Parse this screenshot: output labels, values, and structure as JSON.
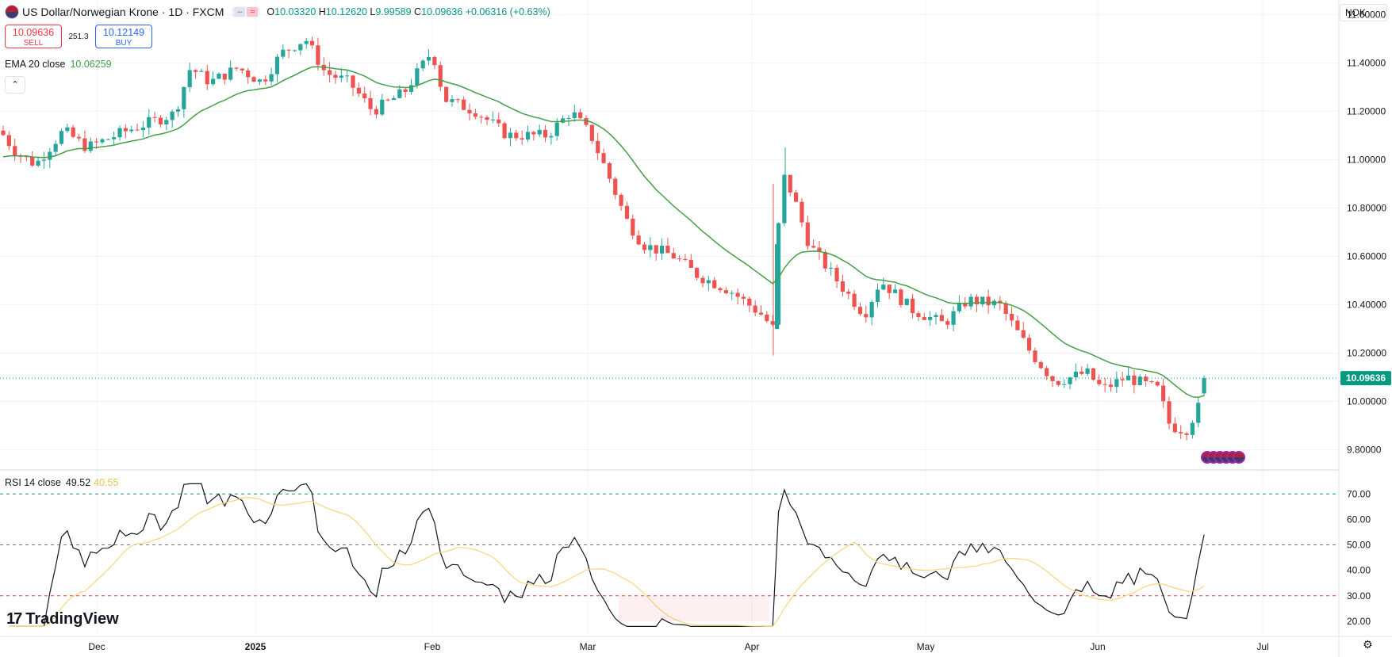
{
  "header": {
    "title": "US Dollar/Norwegian Krone",
    "timeframe": "1D",
    "source": "FXCM",
    "title_full": "US Dollar/Norwegian Krone · 1D · FXCM",
    "ohlc": {
      "o_label": "O",
      "o": "10.03320",
      "h_label": "H",
      "h": "10.12620",
      "l_label": "L",
      "l": "9.99589",
      "c_label": "C",
      "c": "10.09636",
      "change": "+0.06316 (+0.63%)"
    }
  },
  "trade": {
    "sell_price": "10.09636",
    "sell_label": "SELL",
    "spread": "251.3",
    "buy_price": "10.12149",
    "buy_label": "BUY"
  },
  "indicators": {
    "ema_label": "EMA 20 close",
    "ema_value": "10.06259",
    "rsi_label": "RSI 14 close",
    "rsi_value": "49.52",
    "rsi_ma_value": "40.55"
  },
  "currency_button": "NOK",
  "brand": "TradingView",
  "colors": {
    "up": "#26a69a",
    "down": "#ef5350",
    "ema": "#43a047",
    "rsi": "#131722",
    "rsi_ma": "#f5d77a",
    "last_price": "#089981"
  },
  "chart_data": {
    "type": "candlestick",
    "price_axis": {
      "ticks": [
        "11.60000",
        "11.40000",
        "11.20000",
        "11.00000",
        "10.80000",
        "10.60000",
        "10.40000",
        "10.20000",
        "10.00000",
        "9.80000"
      ],
      "range": [
        9.72,
        11.66
      ]
    },
    "x_ticks": [
      "Dec",
      "2025",
      "Feb",
      "Mar",
      "Apr",
      "May",
      "Jun",
      "Jul"
    ],
    "last_price": "10.09636",
    "key_points": [
      {
        "date": "Nov start",
        "close": 11.12
      },
      {
        "date": "Dec mid",
        "close": 11.05
      },
      {
        "date": "Dec end",
        "close": 11.35
      },
      {
        "date": "Jan mid",
        "close": 11.48
      },
      {
        "date": "Feb 1",
        "close": 11.32
      },
      {
        "date": "Feb end",
        "close": 11.25
      },
      {
        "date": "Mar mid",
        "close": 10.55
      },
      {
        "date": "Apr 3",
        "high_low": [
          10.19,
          11.05
        ]
      },
      {
        "date": "Apr mid",
        "close": 10.55
      },
      {
        "date": "May",
        "close": 10.38
      },
      {
        "date": "Jun 1",
        "close": 10.05
      },
      {
        "date": "Jun 12",
        "low": 9.86
      },
      {
        "date": "Jun 20",
        "close": 10.09636
      }
    ],
    "rsi_axis": {
      "ticks": [
        "70.00",
        "60.00",
        "50.00",
        "40.00",
        "30.00",
        "20.00"
      ],
      "levels": [
        70,
        50,
        30
      ]
    }
  }
}
